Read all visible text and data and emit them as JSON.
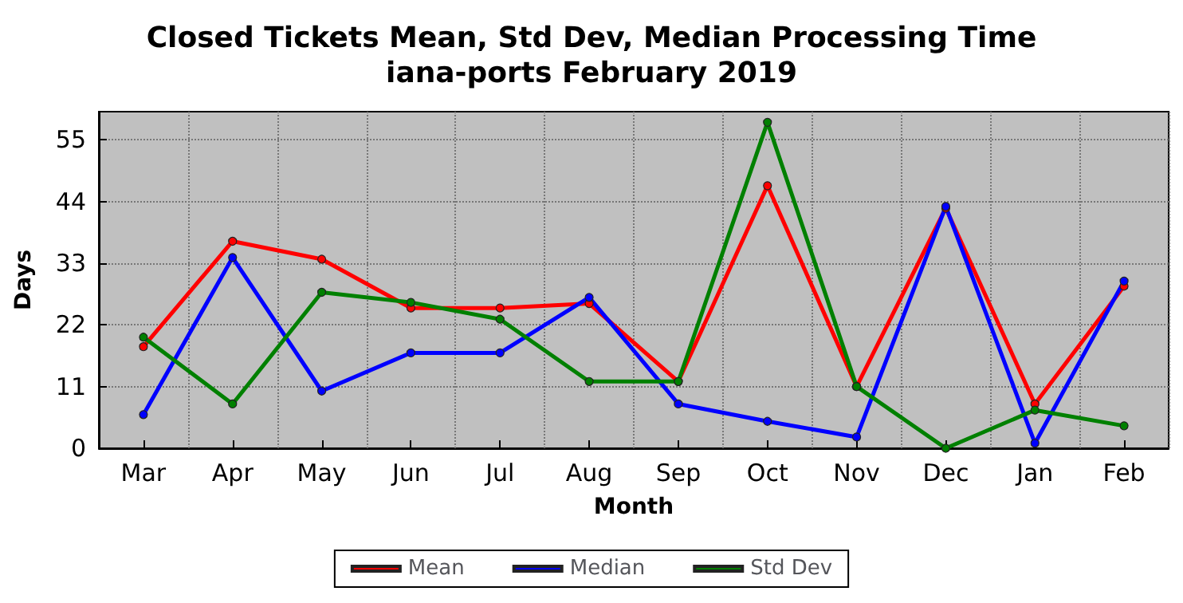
{
  "chart_data": {
    "type": "line",
    "title": "Closed Tickets Mean, Std Dev, Median Processing Time\niana-ports February 2019",
    "xlabel": "Month",
    "ylabel": "Days",
    "categories": [
      "Mar",
      "Apr",
      "May",
      "Jun",
      "Jul",
      "Aug",
      "Sep",
      "Oct",
      "Nov",
      "Dec",
      "Jan",
      "Feb"
    ],
    "series": [
      {
        "name": "Mean",
        "color": "#ff0000",
        "values": [
          18.1,
          36.9,
          33.7,
          25,
          25,
          25.8,
          11.9,
          46.8,
          11,
          42.8,
          7.9,
          28.9
        ]
      },
      {
        "name": "Median",
        "color": "#0000ff",
        "values": [
          6,
          34,
          10.2,
          17,
          17,
          26.9,
          7.9,
          4.8,
          2,
          43.1,
          0.9,
          29.8
        ]
      },
      {
        "name": "Std Dev",
        "color": "#008000",
        "values": [
          19.8,
          7.9,
          27.8,
          26,
          23,
          11.9,
          11.9,
          58.1,
          11,
          0,
          6.8,
          4
        ]
      }
    ],
    "ylim": [
      0,
      60
    ],
    "yticks": [
      0,
      11,
      22,
      33,
      44,
      55
    ],
    "grid": true,
    "legend": "bottom",
    "marker": "circle",
    "line_style": "solid"
  }
}
